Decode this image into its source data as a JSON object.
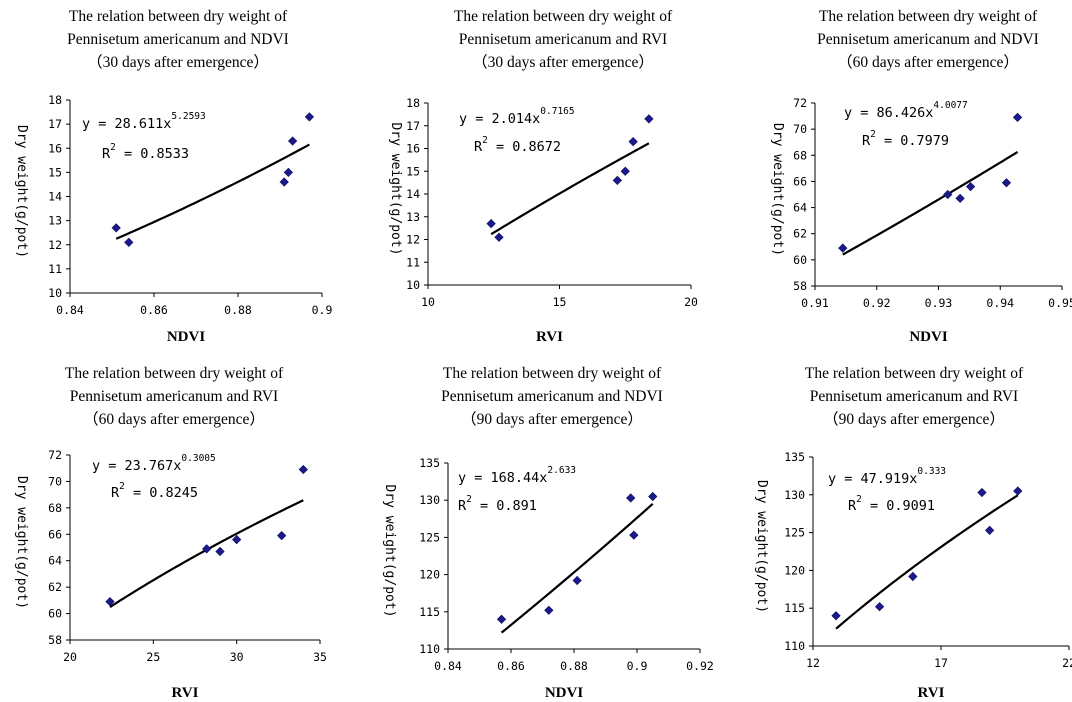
{
  "chart_data": [
    {
      "type": "scatter",
      "title": [
        "The relation between dry weight of",
        "Pennisetum americanum and NDVI",
        "（30 days after emergence）"
      ],
      "xlabel": "NDVI",
      "ylabel": "Dry weight(g/pot)",
      "xlim": [
        0.84,
        0.9
      ],
      "ylim": [
        10,
        18
      ],
      "xticks": [
        0.84,
        0.86,
        0.88,
        0.9
      ],
      "xtick_labels": [
        "0.84",
        "0.86",
        "0.88",
        "0.9"
      ],
      "yticks": [
        10,
        11,
        12,
        13,
        14,
        15,
        16,
        17,
        18
      ],
      "ytick_labels": [
        "10",
        "11",
        "12",
        "13",
        "14",
        "15",
        "16",
        "17",
        "18"
      ],
      "points": [
        [
          0.851,
          12.7
        ],
        [
          0.854,
          12.1
        ],
        [
          0.891,
          14.6
        ],
        [
          0.892,
          15.0
        ],
        [
          0.893,
          16.3
        ],
        [
          0.897,
          17.3
        ]
      ],
      "fit": {
        "a": 28.611,
        "b": 5.2593,
        "x_from": 0.851,
        "x_to": 0.897
      },
      "equation": {
        "prefix": "y = 28.611x",
        "exponent": "5.2593",
        "r2_prefix": "R",
        "r2_exp": "2",
        "r2_value": " = 0.8533"
      }
    },
    {
      "type": "scatter",
      "title": [
        "The relation between dry weight of",
        "Pennisetum americanum and RVI",
        "（30 days after emergence）"
      ],
      "xlabel": "RVI",
      "ylabel": "Dry weight(g/pot)",
      "xlim": [
        10,
        20
      ],
      "ylim": [
        10,
        18
      ],
      "xticks": [
        10,
        15,
        20
      ],
      "xtick_labels": [
        "10",
        "15",
        "20"
      ],
      "yticks": [
        10,
        11,
        12,
        13,
        14,
        15,
        16,
        17,
        18
      ],
      "ytick_labels": [
        "10",
        "11",
        "12",
        "13",
        "14",
        "15",
        "16",
        "17",
        "18"
      ],
      "points": [
        [
          12.4,
          12.7
        ],
        [
          12.7,
          12.1
        ],
        [
          17.2,
          14.6
        ],
        [
          17.5,
          15.0
        ],
        [
          17.8,
          16.3
        ],
        [
          18.4,
          17.3
        ]
      ],
      "fit": {
        "a": 2.014,
        "b": 0.7165,
        "x_from": 12.4,
        "x_to": 18.4
      },
      "equation": {
        "prefix": "y = 2.014x",
        "exponent": "0.7165",
        "r2_prefix": "R",
        "r2_exp": "2",
        "r2_value": " = 0.8672"
      }
    },
    {
      "type": "scatter",
      "title": [
        "The relation between dry weight of",
        "Pennisetum americanum and NDVI",
        "（60 days after emergence）"
      ],
      "xlabel": "NDVI",
      "ylabel": "Dry weight(g/pot)",
      "xlim": [
        0.91,
        0.95
      ],
      "ylim": [
        58,
        72
      ],
      "xticks": [
        0.91,
        0.92,
        0.93,
        0.94,
        0.95
      ],
      "xtick_labels": [
        "0.91",
        "0.92",
        "0.93",
        "0.94",
        "0.95"
      ],
      "yticks": [
        58,
        60,
        62,
        64,
        66,
        68,
        70,
        72
      ],
      "ytick_labels": [
        "58",
        "60",
        "62",
        "64",
        "66",
        "68",
        "70",
        "72"
      ],
      "points": [
        [
          0.9145,
          60.9
        ],
        [
          0.9315,
          65.0
        ],
        [
          0.9335,
          64.7
        ],
        [
          0.9352,
          65.6
        ],
        [
          0.941,
          65.9
        ],
        [
          0.9428,
          70.9
        ]
      ],
      "fit": {
        "a": 86.426,
        "b": 4.0077,
        "x_from": 0.9145,
        "x_to": 0.9428
      },
      "equation": {
        "prefix": "y = 86.426x",
        "exponent": "4.0077",
        "r2_prefix": "R",
        "r2_exp": "2",
        "r2_value": " = 0.7979"
      }
    },
    {
      "type": "scatter",
      "title": [
        "The relation between dry weight of",
        "Pennisetum americanum and RVI",
        "（60 days after emergence）"
      ],
      "xlabel": "RVI",
      "ylabel": "Dry weight(g/pot)",
      "xlim": [
        20,
        35
      ],
      "ylim": [
        58,
        72
      ],
      "xticks": [
        20,
        25,
        30,
        35
      ],
      "xtick_labels": [
        "20",
        "25",
        "30",
        "35"
      ],
      "yticks": [
        58,
        60,
        62,
        64,
        66,
        68,
        70,
        72
      ],
      "ytick_labels": [
        "58",
        "60",
        "62",
        "64",
        "66",
        "68",
        "70",
        "72"
      ],
      "points": [
        [
          22.4,
          60.9
        ],
        [
          28.2,
          64.9
        ],
        [
          29.0,
          64.7
        ],
        [
          30.0,
          65.6
        ],
        [
          32.7,
          65.9
        ],
        [
          34.0,
          70.9
        ]
      ],
      "fit": {
        "a": 23.767,
        "b": 0.3005,
        "x_from": 22.4,
        "x_to": 34.0
      },
      "equation": {
        "prefix": "y = 23.767x",
        "exponent": "0.3005",
        "r2_prefix": "R",
        "r2_exp": "2",
        "r2_value": " = 0.8245"
      }
    },
    {
      "type": "scatter",
      "title": [
        "The relation between dry weight of",
        "Pennisetum americanum and NDVI",
        "（90 days after emergence）"
      ],
      "xlabel": "NDVI",
      "ylabel": "Dry weight(g/pot)",
      "xlim": [
        0.84,
        0.92
      ],
      "ylim": [
        110,
        135
      ],
      "xticks": [
        0.84,
        0.86,
        0.88,
        0.9,
        0.92
      ],
      "xtick_labels": [
        "0.84",
        "0.86",
        "0.88",
        "0.9",
        "0.92"
      ],
      "yticks": [
        110,
        115,
        120,
        125,
        130,
        135
      ],
      "ytick_labels": [
        "110",
        "115",
        "120",
        "125",
        "130",
        "135"
      ],
      "points": [
        [
          0.857,
          114.0
        ],
        [
          0.872,
          115.2
        ],
        [
          0.881,
          119.2
        ],
        [
          0.898,
          130.3
        ],
        [
          0.899,
          125.3
        ],
        [
          0.905,
          130.5
        ]
      ],
      "fit": {
        "a": 168.44,
        "b": 2.633,
        "x_from": 0.857,
        "x_to": 0.905
      },
      "equation": {
        "prefix": "y = 168.44x",
        "exponent": "2.633",
        "r2_prefix": "R",
        "r2_exp": "2",
        "r2_value": " = 0.891"
      }
    },
    {
      "type": "scatter",
      "title": [
        "The relation between dry weight of",
        "Pennisetum americanum and RVI",
        "（90 days after emergence）"
      ],
      "xlabel": "RVI",
      "ylabel": "Dry weight(g/pot)",
      "xlim": [
        12,
        22
      ],
      "ylim": [
        110,
        135
      ],
      "xticks": [
        12,
        17,
        22
      ],
      "xtick_labels": [
        "12",
        "17",
        "22"
      ],
      "yticks": [
        110,
        115,
        120,
        125,
        130,
        135
      ],
      "ytick_labels": [
        "110",
        "115",
        "120",
        "125",
        "130",
        "135"
      ],
      "points": [
        [
          12.9,
          114.0
        ],
        [
          14.6,
          115.2
        ],
        [
          15.9,
          119.2
        ],
        [
          18.6,
          130.3
        ],
        [
          18.9,
          125.3
        ],
        [
          20.0,
          130.5
        ]
      ],
      "fit": {
        "a": 47.919,
        "b": 0.333,
        "x_from": 12.9,
        "x_to": 20.0
      },
      "equation": {
        "prefix": "y = 47.919x",
        "exponent": "0.333",
        "r2_prefix": "R",
        "r2_exp": "2",
        "r2_value": " = 0.9091"
      }
    }
  ]
}
